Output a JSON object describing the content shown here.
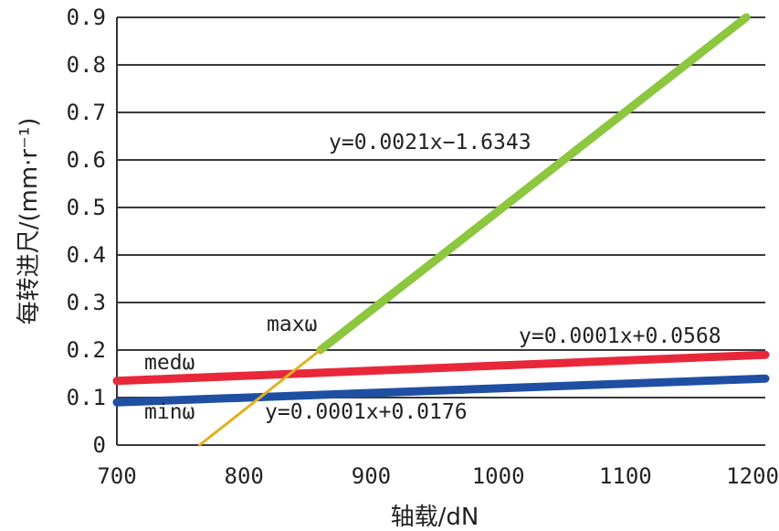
{
  "chart_data": {
    "type": "line",
    "title": "",
    "xlabel": "轴载/dN",
    "ylabel": "每转进尺/(mm·r⁻¹)",
    "xlim": [
      700,
      1210
    ],
    "ylim": [
      0,
      0.9
    ],
    "x_ticks": [
      "700",
      "800",
      "900",
      "1000",
      "1100",
      "1200"
    ],
    "y_ticks": [
      "0",
      "0.1",
      "0.2",
      "0.3",
      "0.4",
      "0.5",
      "0.6",
      "0.7",
      "0.8",
      "0.9"
    ],
    "grid": "horizontal",
    "series": [
      {
        "name": "maxω",
        "color": "#8dc63f",
        "x": [
          860,
          1195
        ],
        "y": [
          0.2,
          0.9
        ]
      },
      {
        "name": "medω",
        "color": "#e8283a",
        "x": [
          700,
          1210
        ],
        "y": [
          0.135,
          0.19
        ]
      },
      {
        "name": "minω",
        "color": "#1f4fa3",
        "x": [
          700,
          1210
        ],
        "y": [
          0.09,
          0.14
        ]
      },
      {
        "name": "",
        "color": "#e0b020",
        "x": [
          765,
          860
        ],
        "y": [
          0.0,
          0.2
        ]
      }
    ],
    "annotations": {
      "max_eq": "y=0.0021x−1.6343",
      "med_eq": "y=0.0001x+0.0568",
      "min_eq": "y=0.0001x+0.0176",
      "max_label": "maxω",
      "med_label": "medω",
      "min_label": "minω"
    }
  }
}
